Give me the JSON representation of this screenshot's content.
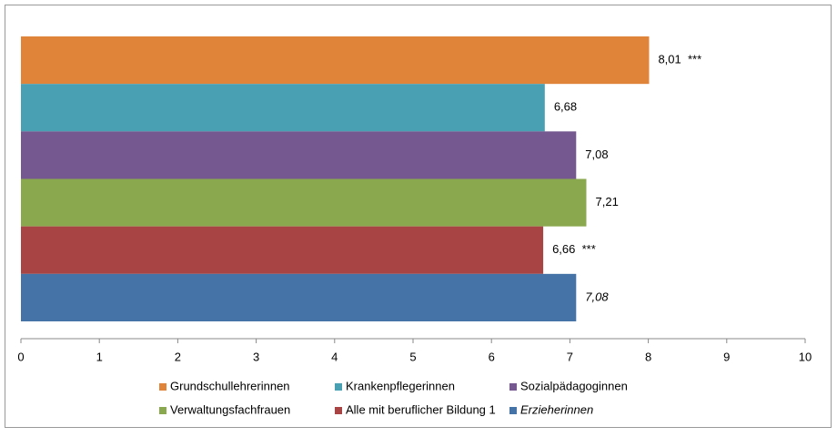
{
  "chart_data": {
    "type": "barh",
    "series": [
      {
        "name": "Grundschullehrerinnen",
        "color": "#e0843a",
        "values": [
          8.01
        ],
        "value_labels": [
          "8,01  ***"
        ]
      },
      {
        "name": "Krankenpflegerinnen",
        "color": "#4aa0b3",
        "values": [
          6.68
        ],
        "value_labels": [
          "6,68"
        ]
      },
      {
        "name": "Sozialpädagoginnen",
        "color": "#74588f",
        "values": [
          7.08
        ],
        "value_labels": [
          "7,08"
        ]
      },
      {
        "name": "Verwaltungsfachfrauen",
        "color": "#8aa84e",
        "values": [
          7.21
        ],
        "value_labels": [
          "7,21"
        ]
      },
      {
        "name": "Alle mit beruflicher Bildung 1",
        "color": "#a84443",
        "values": [
          6.66
        ],
        "value_labels": [
          "6,66  ***"
        ]
      },
      {
        "name": "Erzieherinnen",
        "color": "#4573a7",
        "values": [
          7.08
        ],
        "value_labels": [
          "7,08"
        ],
        "italic": true
      }
    ],
    "xlim": [
      0,
      10
    ],
    "xticks": [
      0,
      1,
      2,
      3,
      4,
      5,
      6,
      7,
      8,
      9,
      10
    ],
    "grid": false
  }
}
